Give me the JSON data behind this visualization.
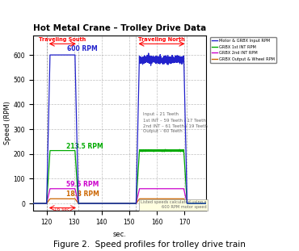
{
  "title": "Hot Metal Crane – Trolley Drive Data",
  "xlabel": "sec.",
  "ylabel": "Speed (RPM)",
  "figcaption": "Figure 2.  Speed profiles for trolley drive train",
  "xlim": [
    115,
    178
  ],
  "ylim": [
    -30,
    680
  ],
  "yticks": [
    0,
    100,
    200,
    300,
    400,
    500,
    600
  ],
  "xticks": [
    120,
    130,
    140,
    150,
    160,
    170
  ],
  "colors": {
    "blue": "#2222cc",
    "green": "#00aa00",
    "magenta": "#cc00cc",
    "orange": "#cc6600"
  },
  "legend_entries": [
    "Motor & GRBX Input RPM",
    "GRBX 1st INT RPM",
    "GRBX 2nd INT RPM",
    "GRBX Output & Wheel RPM"
  ],
  "legend_colors": [
    "#2222cc",
    "#00aa00",
    "#cc00cc",
    "#cc6600"
  ],
  "s1": 120.0,
  "e1": 131.5,
  "s2": 152.5,
  "e2": 171.0,
  "accel": 1.2,
  "blue_peak": 600,
  "green_peak": 213.5,
  "mag_peak": 59.5,
  "ora_peak": 18.8,
  "annotation_text": "Input – 21 Teeth\n1st INT – 59 Teeth / 17 Teeth\n2nd INT – 61 Teeth / 19 Teeth\nOutput – 60 Teeth",
  "bottom_note": "Listed speeds calculated using a\n600 RPM motor speed",
  "traveling_south_label": "Traveling South",
  "traveling_north_label": "Traveling North"
}
